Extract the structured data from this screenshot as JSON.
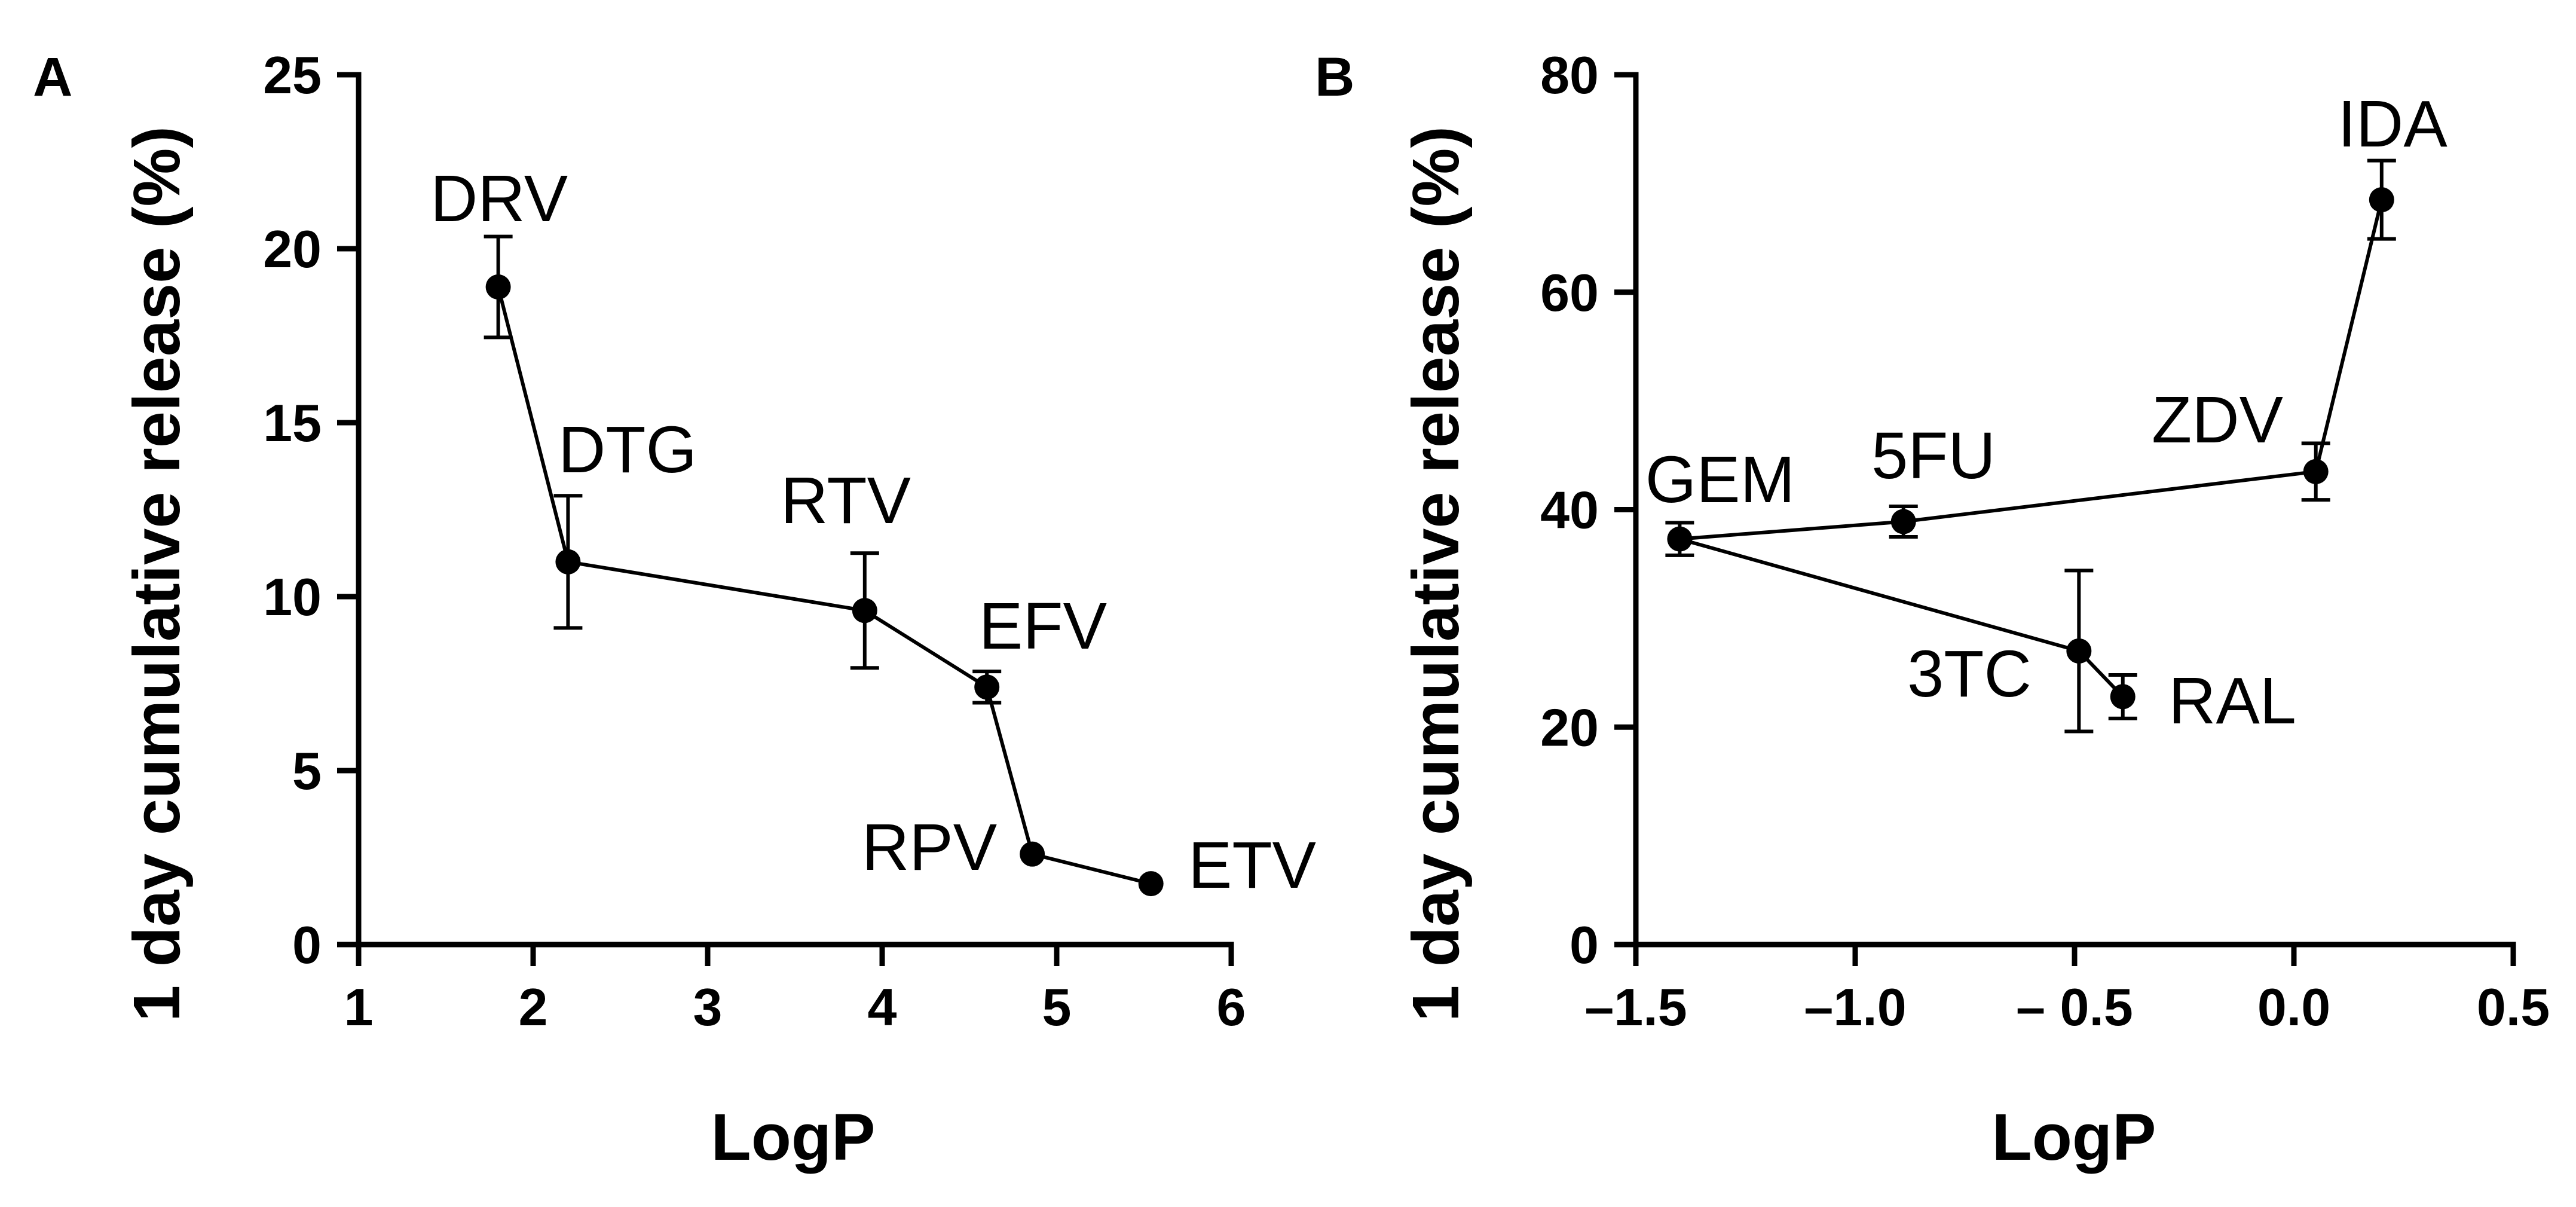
{
  "chart_data": [
    {
      "panel": "A",
      "type": "line",
      "xlabel": "LogP",
      "ylabel": "1 day cumulative release (%)",
      "xlim": [
        1,
        6
      ],
      "ylim": [
        0,
        25
      ],
      "xticks": [
        1,
        2,
        3,
        4,
        5,
        6
      ],
      "xtick_labels": [
        "1",
        "2",
        "3",
        "4",
        "5",
        "6"
      ],
      "yticks": [
        0,
        5,
        10,
        15,
        20,
        25
      ],
      "ytick_labels": [
        "0",
        "5",
        "10",
        "15",
        "20",
        "25"
      ],
      "points": [
        {
          "label": "DRV",
          "x": 1.8,
          "y": 18.9,
          "err": 1.45
        },
        {
          "label": "DTG",
          "x": 2.2,
          "y": 11.0,
          "err": 1.9
        },
        {
          "label": "RTV",
          "x": 3.9,
          "y": 9.6,
          "err": 1.65
        },
        {
          "label": "EFV",
          "x": 4.6,
          "y": 7.4,
          "err": 0.45
        },
        {
          "label": "RPV",
          "x": 4.86,
          "y": 2.6,
          "err": 0
        },
        {
          "label": "ETV",
          "x": 5.54,
          "y": 1.75,
          "err": 0
        }
      ],
      "lines": [
        [
          "DRV",
          "DTG",
          "RTV",
          "EFV",
          "RPV",
          "ETV"
        ]
      ]
    },
    {
      "panel": "B",
      "type": "line",
      "xlabel": "LogP",
      "ylabel": "1 day cumulative release (%)",
      "xlim": [
        -1.5,
        0.5
      ],
      "ylim": [
        0,
        80
      ],
      "xticks": [
        -1.5,
        -1.0,
        -0.5,
        0.0,
        0.5
      ],
      "xtick_labels": [
        "–1.5",
        "–1.0",
        "– 0.5",
        "0.0",
        "0.5"
      ],
      "yticks": [
        0,
        20,
        40,
        60,
        80
      ],
      "ytick_labels": [
        "0",
        "20",
        "40",
        "60",
        "80"
      ],
      "points": [
        {
          "label": "GEM",
          "x": -1.4,
          "y": 37.3,
          "err": 1.5
        },
        {
          "label": "5FU",
          "x": -0.89,
          "y": 38.9,
          "err": 1.4
        },
        {
          "label": "ZDV",
          "x": 0.05,
          "y": 43.5,
          "err": 2.6
        },
        {
          "label": "IDA",
          "x": 0.2,
          "y": 68.5,
          "err": 3.6
        },
        {
          "label": "3TC",
          "x": -0.49,
          "y": 27.0,
          "err": 7.4
        },
        {
          "label": "RAL",
          "x": -0.39,
          "y": 22.8,
          "err": 2.0
        }
      ],
      "lines": [
        [
          "GEM",
          "5FU",
          "ZDV",
          "IDA"
        ],
        [
          "GEM",
          "3TC",
          "RAL"
        ]
      ]
    }
  ]
}
